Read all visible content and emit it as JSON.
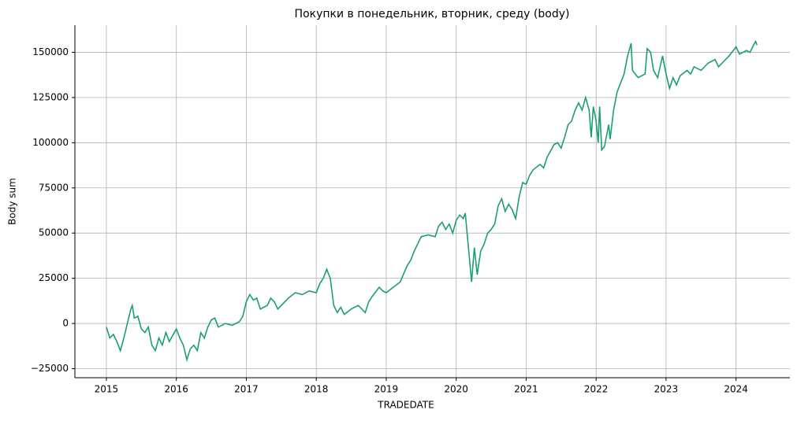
{
  "chart_data": {
    "type": "line",
    "title": "Покупки в понедельник, вторник, среду (body)",
    "xlabel": "TRADEDATE",
    "ylabel": "Body sum",
    "color": "#1b9e77",
    "grid": true,
    "xlim": [
      2014.55,
      2024.77
    ],
    "xticks": [
      2015,
      2016,
      2017,
      2018,
      2019,
      2020,
      2021,
      2022,
      2023,
      2024
    ],
    "ylim": [
      -30000,
      165000
    ],
    "yticks": [
      {
        "value": -25000,
        "label": "−25000"
      },
      0,
      25000,
      50000,
      75000,
      100000,
      125000,
      150000
    ],
    "x": [
      2015.0,
      2015.05,
      2015.1,
      2015.15,
      2015.2,
      2015.25,
      2015.3,
      2015.35,
      2015.37,
      2015.4,
      2015.45,
      2015.5,
      2015.55,
      2015.6,
      2015.65,
      2015.7,
      2015.75,
      2015.8,
      2015.85,
      2015.9,
      2016.0,
      2016.05,
      2016.1,
      2016.15,
      2016.2,
      2016.25,
      2016.3,
      2016.35,
      2016.4,
      2016.45,
      2016.5,
      2016.55,
      2016.6,
      2016.7,
      2016.8,
      2016.9,
      2016.95,
      2017.0,
      2017.05,
      2017.1,
      2017.15,
      2017.2,
      2017.3,
      2017.35,
      2017.4,
      2017.45,
      2017.5,
      2017.6,
      2017.7,
      2017.8,
      2017.9,
      2018.0,
      2018.05,
      2018.1,
      2018.15,
      2018.2,
      2018.25,
      2018.3,
      2018.35,
      2018.4,
      2018.5,
      2018.6,
      2018.7,
      2018.75,
      2018.8,
      2018.9,
      2018.95,
      2019.0,
      2019.1,
      2019.2,
      2019.3,
      2019.35,
      2019.4,
      2019.5,
      2019.6,
      2019.7,
      2019.75,
      2019.8,
      2019.85,
      2019.9,
      2019.95,
      2020.0,
      2020.05,
      2020.1,
      2020.13,
      2020.18,
      2020.22,
      2020.26,
      2020.3,
      2020.35,
      2020.4,
      2020.45,
      2020.5,
      2020.55,
      2020.6,
      2020.65,
      2020.7,
      2020.75,
      2020.8,
      2020.85,
      2020.9,
      2020.95,
      2021.0,
      2021.05,
      2021.1,
      2021.2,
      2021.25,
      2021.3,
      2021.4,
      2021.45,
      2021.5,
      2021.55,
      2021.6,
      2021.65,
      2021.7,
      2021.75,
      2021.8,
      2021.85,
      2021.9,
      2021.93,
      2021.96,
      2022.0,
      2022.03,
      2022.05,
      2022.08,
      2022.12,
      2022.18,
      2022.2,
      2022.25,
      2022.3,
      2022.4,
      2022.45,
      2022.5,
      2022.52,
      2022.6,
      2022.7,
      2022.73,
      2022.78,
      2022.82,
      2022.88,
      2022.95,
      2023.0,
      2023.05,
      2023.1,
      2023.15,
      2023.2,
      2023.3,
      2023.35,
      2023.4,
      2023.5,
      2023.6,
      2023.7,
      2023.75,
      2023.8,
      2023.9,
      2024.0,
      2024.05,
      2024.15,
      2024.2,
      2024.25,
      2024.28,
      2024.3
    ],
    "values": [
      -2000,
      -8000,
      -6000,
      -10000,
      -15000,
      -8000,
      0,
      8000,
      10000,
      3000,
      4000,
      -3000,
      -5000,
      -2000,
      -12000,
      -15000,
      -8000,
      -12000,
      -5000,
      -10000,
      -3000,
      -8000,
      -12000,
      -20000,
      -14000,
      -12000,
      -15000,
      -5000,
      -8000,
      -2000,
      2000,
      3000,
      -2000,
      0,
      -1000,
      1000,
      4000,
      12000,
      16000,
      13000,
      14000,
      8000,
      10000,
      14000,
      12000,
      8000,
      10000,
      14000,
      17000,
      16000,
      18000,
      17000,
      22000,
      25000,
      30000,
      25000,
      10000,
      6000,
      9000,
      5000,
      8000,
      10000,
      6000,
      12000,
      15000,
      20000,
      18000,
      17000,
      20000,
      23000,
      32000,
      35000,
      40000,
      48000,
      49000,
      48000,
      54000,
      56000,
      52000,
      55000,
      50000,
      57000,
      60000,
      58000,
      61000,
      40000,
      23000,
      42000,
      27000,
      40000,
      44000,
      50000,
      52000,
      55000,
      65000,
      69000,
      62000,
      66000,
      63000,
      58000,
      70000,
      78000,
      77000,
      82000,
      85000,
      88000,
      86000,
      92000,
      99000,
      100000,
      97000,
      103000,
      110000,
      112000,
      118000,
      122000,
      118000,
      125000,
      118000,
      103000,
      120000,
      112000,
      100000,
      120000,
      96000,
      98000,
      110000,
      102000,
      118000,
      128000,
      138000,
      148000,
      155000,
      140000,
      136000,
      138000,
      152000,
      150000,
      140000,
      136000,
      148000,
      138000,
      130000,
      136000,
      132000,
      137000,
      140000,
      138000,
      142000,
      140000,
      144000,
      146000,
      142000,
      144000,
      148000,
      153000,
      149000,
      151000,
      150000,
      154000,
      156000,
      154000
    ]
  }
}
